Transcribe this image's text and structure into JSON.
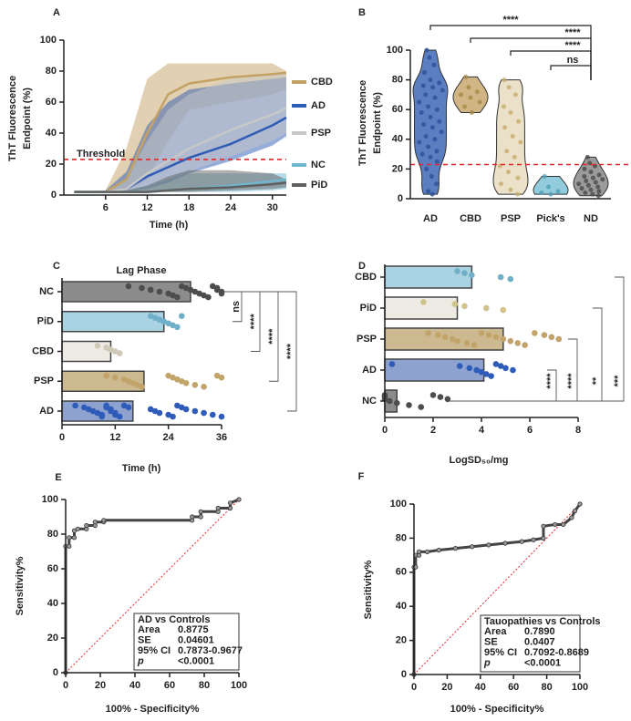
{
  "chart_data": [
    {
      "type": "line",
      "label": "A",
      "y_label": [
        "ThT Fluorescence",
        "Endpoint (%)"
      ],
      "x_label": "Time (h)",
      "x": [
        1.5,
        6,
        9,
        12,
        15,
        18,
        24,
        30,
        32
      ],
      "xlim": [
        0,
        32
      ],
      "xticks": [
        6,
        12,
        18,
        24,
        30
      ],
      "ylim": [
        0,
        100
      ],
      "yticks": [
        0,
        20,
        40,
        60,
        80,
        100
      ],
      "threshold": {
        "value": 23,
        "label": "Threshold",
        "color": "#e8262a"
      },
      "series": [
        {
          "name": "CBD",
          "color": "#c4a266",
          "values": [
            2,
            2,
            10,
            40,
            65,
            72,
            76,
            78,
            79
          ],
          "lower": [
            2,
            2,
            3,
            10,
            35,
            55,
            60,
            65,
            68
          ],
          "upper": [
            2,
            3,
            30,
            75,
            85,
            85,
            85,
            85,
            80
          ]
        },
        {
          "name": "AD",
          "color": "#2f5cb4",
          "values": [
            2,
            2,
            4,
            12,
            18,
            24,
            33,
            45,
            50
          ],
          "lower": [
            2,
            2,
            2,
            4,
            8,
            14,
            22,
            32,
            38
          ],
          "upper": [
            2,
            3,
            15,
            45,
            60,
            68,
            72,
            75,
            76
          ]
        },
        {
          "name": "PSP",
          "color": "#c8c8c8",
          "values": [
            2,
            2,
            4,
            14,
            22,
            30,
            42,
            52,
            56
          ],
          "lower": [
            2,
            2,
            2,
            4,
            10,
            15,
            25,
            35,
            40
          ],
          "upper": [
            2,
            3,
            10,
            35,
            55,
            65,
            75,
            78,
            78
          ]
        },
        {
          "name": "NC",
          "color": "#6fb6cf",
          "values": [
            2,
            2,
            2,
            2,
            3,
            4,
            6,
            9,
            10
          ],
          "lower": [
            2,
            2,
            2,
            2,
            2,
            2,
            2,
            3,
            4
          ],
          "upper": [
            2,
            2,
            3,
            6,
            10,
            14,
            14,
            14,
            14
          ]
        },
        {
          "name": "PiD",
          "color": "#5f5f5f",
          "values": [
            2,
            2,
            2,
            2,
            3,
            4,
            5,
            7,
            8
          ],
          "lower": [
            2,
            2,
            2,
            2,
            2,
            2,
            3,
            4,
            5
          ],
          "upper": [
            2,
            2,
            3,
            6,
            12,
            16,
            16,
            14,
            10
          ]
        }
      ]
    },
    {
      "type": "violin",
      "label": "B",
      "y_label": [
        "ThT Fluorescence",
        "Endpoint (%)"
      ],
      "categories": [
        "AD",
        "CBD",
        "PSP",
        "Pick's",
        "ND"
      ],
      "colors": [
        "#3d67b5",
        "#c8a96e",
        "#e8dcc0",
        "#7fc3d6",
        "#8a8a8a"
      ],
      "point_colors": [
        "#2a4f9a",
        "#a88848",
        "#c8ab6e",
        "#4f9fb8",
        "#4a4a4a"
      ],
      "points": [
        [
          100,
          95,
          90,
          85,
          80,
          78,
          76,
          75,
          73,
          70,
          68,
          65,
          62,
          60,
          58,
          55,
          52,
          50,
          48,
          45,
          42,
          40,
          38,
          35,
          32,
          30,
          28,
          25,
          20,
          15,
          10,
          5,
          3
        ],
        [
          82,
          75,
          72,
          70,
          68,
          65,
          62,
          58
        ],
        [
          80,
          75,
          70,
          62,
          58,
          52,
          48,
          42,
          38,
          32,
          28,
          22,
          18,
          14,
          10,
          6,
          3
        ],
        [
          15,
          8,
          5,
          4,
          3
        ],
        [
          28,
          24,
          22,
          20,
          18,
          16,
          15,
          14,
          13,
          12,
          11,
          10,
          9,
          8,
          7,
          6,
          5,
          4,
          3,
          2
        ]
      ],
      "ylim": [
        0,
        100
      ],
      "yticks": [
        0,
        20,
        40,
        60,
        80,
        100
      ],
      "threshold": 23,
      "threshold_color": "#e8262a",
      "comparisons": [
        {
          "from": "AD",
          "to": "ND",
          "label": "****"
        },
        {
          "from": "CBD",
          "to": "ND",
          "label": "****"
        },
        {
          "from": "PSP",
          "to": "ND",
          "label": "****"
        },
        {
          "from": "Pick's",
          "to": "ND",
          "label": "ns"
        }
      ]
    },
    {
      "type": "bar",
      "label": "C",
      "title": "Lag Phase",
      "x_label": "Time (h)",
      "categories": [
        "NC",
        "PiD",
        "CBD",
        "PSP",
        "AD"
      ],
      "values": [
        29,
        23,
        11,
        18.5,
        16
      ],
      "colors": [
        "#8c8c8c",
        "#a9d3e3",
        "#eeebe4",
        "#cdb98f",
        "#8ea2cf"
      ],
      "point_colors": [
        "#4d4d4d",
        "#6fb0c8",
        "#cfc8b6",
        "#c2a46b",
        "#2f5cb8"
      ],
      "points": [
        [
          15,
          18,
          20,
          22,
          24,
          25,
          26,
          27,
          28,
          29,
          30,
          31,
          32,
          33,
          34,
          35,
          35,
          36,
          36
        ],
        [
          20,
          21,
          22,
          23,
          24,
          25,
          26,
          27
        ],
        [
          8,
          10,
          11,
          12,
          13
        ],
        [
          10,
          12,
          14,
          15,
          16,
          17,
          18,
          24,
          25,
          26,
          27,
          28,
          30,
          32,
          35,
          36
        ],
        [
          3,
          5,
          6,
          7,
          8,
          9,
          9,
          10,
          10,
          11,
          11,
          12,
          12,
          13,
          14,
          15,
          20,
          21,
          22,
          24,
          25,
          26,
          27,
          28,
          30,
          32,
          34,
          36
        ]
      ],
      "xlim": [
        0,
        36
      ],
      "xticks": [
        0,
        12,
        24,
        36
      ],
      "comparisons": [
        {
          "from": "NC",
          "to": "PiD",
          "label": "ns"
        },
        {
          "from": "NC",
          "to": "CBD",
          "label": "****"
        },
        {
          "from": "NC",
          "to": "PSP",
          "label": "****"
        },
        {
          "from": "NC",
          "to": "AD",
          "label": "****"
        }
      ]
    },
    {
      "type": "bar",
      "label": "D",
      "x_label": "LogSD₅₀/mg",
      "categories": [
        "CBD",
        "PiD",
        "PSP",
        "AD",
        "NC"
      ],
      "values": [
        3.6,
        3.0,
        4.9,
        4.1,
        0.5
      ],
      "colors": [
        "#a9d3e3",
        "#eeebe4",
        "#cdb98f",
        "#8ea2cf",
        "#8c8c8c"
      ],
      "point_colors": [
        "#6fb0c8",
        "#cfc28a",
        "#c2a46b",
        "#2f5cb8",
        "#4d4d4d"
      ],
      "points": [
        [
          3,
          3.3,
          3.6,
          4.8,
          5.2
        ],
        [
          1.6,
          2.9,
          3.3,
          4.2,
          4.9
        ],
        [
          1.8,
          2.2,
          2.5,
          2.8,
          3,
          3.4,
          3.7,
          4,
          4.3,
          4.6,
          4.9,
          5.2,
          5.5,
          5.8,
          6.2,
          6.6,
          6.9,
          7.2
        ],
        [
          0.3,
          3.1,
          3.5,
          3.8,
          4,
          4.2,
          4.4,
          4.6,
          4.8,
          5,
          5.3
        ],
        [
          0,
          0,
          0,
          0.2,
          0.5,
          1,
          1.5,
          2,
          2.3,
          2.6
        ]
      ],
      "xlim": [
        0,
        8
      ],
      "xticks": [
        0,
        2,
        4,
        6,
        8
      ],
      "comparisons": [
        {
          "from": "NC",
          "to": "AD",
          "label": "****"
        },
        {
          "from": "NC",
          "to": "PSP",
          "label": "****"
        },
        {
          "from": "NC",
          "to": "PiD",
          "label": "**"
        },
        {
          "from": "NC",
          "to": "CBD",
          "label": "***"
        }
      ]
    },
    {
      "type": "roc",
      "label": "E",
      "y_label": "Sensitivity%",
      "x_label": "100% - Specificity%",
      "color": "#444444",
      "x": [
        0,
        0,
        2,
        2,
        5,
        5,
        7,
        12,
        12,
        17,
        17,
        22,
        22,
        73,
        73,
        78,
        78,
        88,
        88,
        95,
        95,
        100
      ],
      "values": [
        0,
        73,
        73,
        78,
        78,
        82,
        83,
        83,
        85,
        85,
        87,
        87,
        88,
        88,
        90,
        90,
        93,
        93,
        95,
        95,
        98,
        100
      ],
      "xlim": [
        0,
        100
      ],
      "xticks": [
        0,
        20,
        40,
        60,
        80,
        100
      ],
      "ylim": [
        0,
        100
      ],
      "yticks": [
        0,
        20,
        40,
        60,
        80,
        100
      ],
      "stats": {
        "title": "AD vs Controls",
        "rows": [
          [
            "Area",
            "0.8775"
          ],
          [
            "SE",
            "0.04601"
          ],
          [
            "95% CI",
            "0.7873-0.9677"
          ],
          [
            "p",
            "<0.0001"
          ]
        ]
      }
    },
    {
      "type": "roc",
      "label": "F",
      "y_label": "Sensitivity%",
      "x_label": "100% - Specificity%",
      "color": "#444444",
      "x": [
        0,
        0,
        1,
        1,
        3,
        3,
        8,
        15,
        25,
        35,
        45,
        55,
        65,
        72,
        78,
        78,
        85,
        90,
        95,
        97,
        100
      ],
      "values": [
        0,
        63,
        63,
        70,
        70,
        72,
        72,
        73,
        74,
        75,
        76,
        77,
        78,
        79,
        80,
        87,
        88,
        88,
        92,
        96,
        100
      ],
      "xlim": [
        0,
        100
      ],
      "xticks": [
        0,
        20,
        40,
        60,
        80,
        100
      ],
      "ylim": [
        0,
        100
      ],
      "yticks": [
        0,
        20,
        40,
        60,
        80,
        100
      ],
      "stats": {
        "title": "Tauopathies vs Controls",
        "rows": [
          [
            "Area",
            "0.7890"
          ],
          [
            "SE",
            "0.0407"
          ],
          [
            "95% CI",
            "0.7092-0.8689"
          ],
          [
            "p",
            "<0.0001"
          ]
        ]
      }
    }
  ]
}
